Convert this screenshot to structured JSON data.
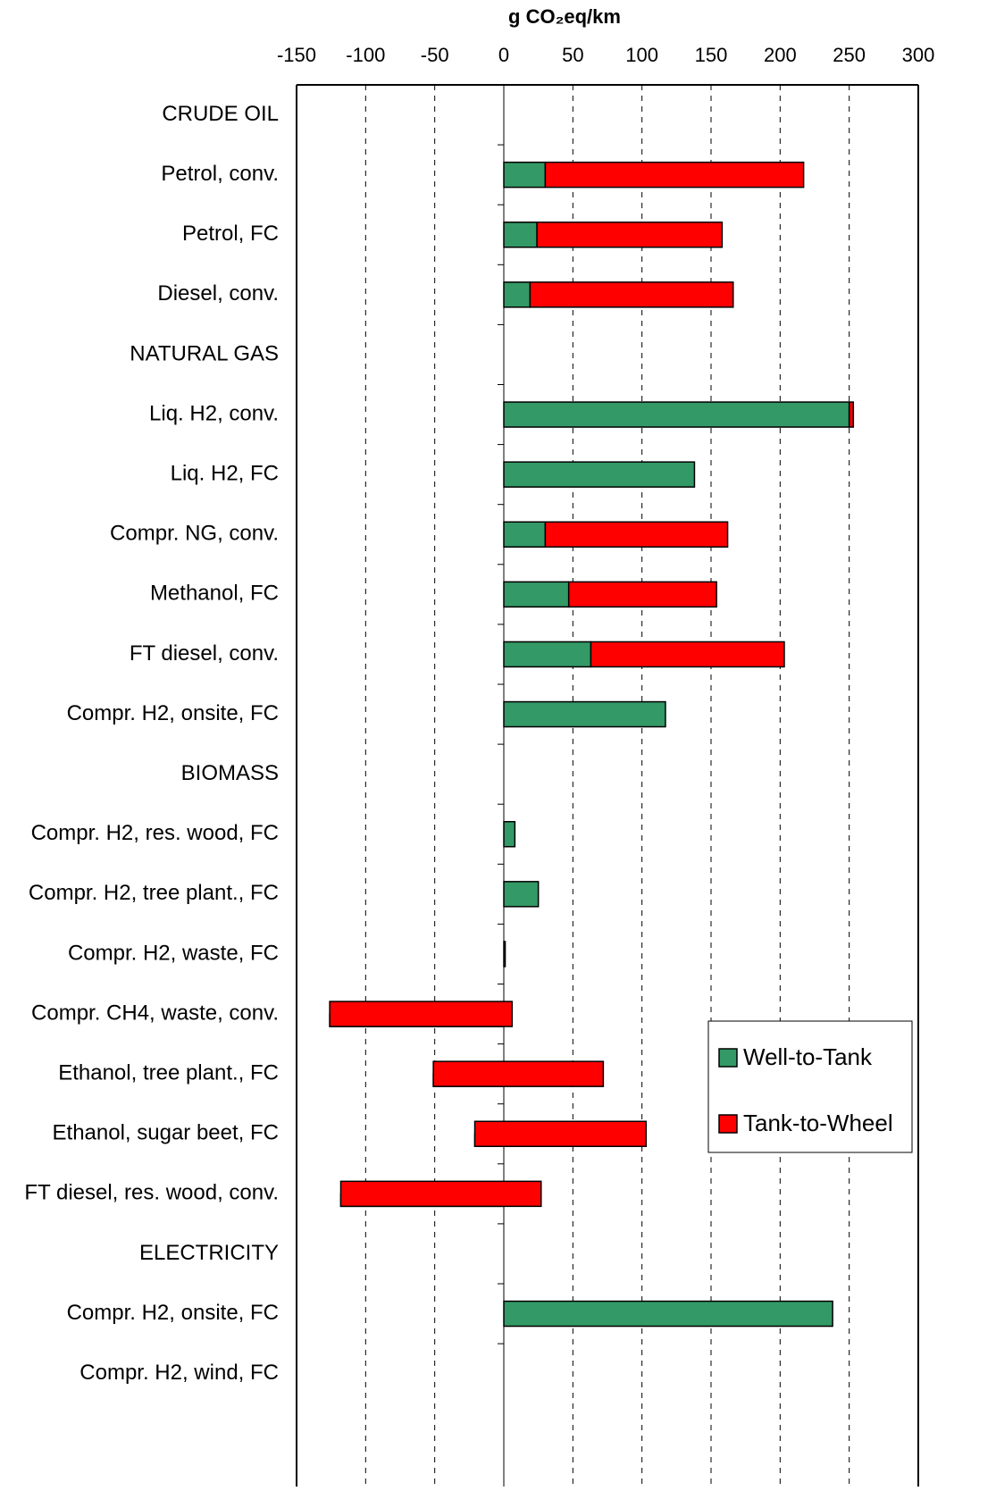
{
  "chart_data": {
    "type": "bar",
    "orientation": "horizontal",
    "stacked": true,
    "title": "g CO₂eq/km",
    "categories": [
      "CRUDE OIL",
      "Petrol, conv.",
      "Petrol, FC",
      "Diesel, conv.",
      "NATURAL GAS",
      "Liq. H2, conv.",
      "Liq. H2, FC",
      "Compr. NG, conv.",
      "Methanol, FC",
      "FT diesel, conv.",
      "Compr. H2, onsite, FC",
      "BIOMASS",
      "Compr. H2, res. wood, FC",
      "Compr. H2, tree plant., FC",
      "Compr. H2, waste, FC",
      "Compr. CH4, waste, conv.",
      "Ethanol, tree plant., FC",
      "Ethanol, sugar beet, FC",
      "FT diesel, res. wood, conv.",
      "ELECTRICITY",
      "Compr. H2, onsite, FC",
      "Compr. H2, wind, FC"
    ],
    "series": [
      {
        "name": "Well-to-Tank",
        "color": "#339966",
        "values": [
          null,
          30,
          24,
          19,
          null,
          250,
          138,
          30,
          47,
          63,
          117,
          null,
          8,
          25,
          1,
          -126,
          -51,
          -21,
          -118,
          null,
          238,
          0
        ]
      },
      {
        "name": "Tank-to-Wheel",
        "color": "#ff0000",
        "values": [
          null,
          187,
          134,
          147,
          null,
          3,
          0,
          132,
          107,
          140,
          0,
          null,
          0,
          0,
          0,
          132,
          123,
          124,
          145,
          null,
          0,
          0
        ]
      }
    ],
    "xlim": [
      -150,
      300
    ],
    "xticks": [
      -150,
      -100,
      -50,
      0,
      50,
      100,
      150,
      200,
      250,
      300
    ],
    "grid": true,
    "legend": "lower right"
  }
}
